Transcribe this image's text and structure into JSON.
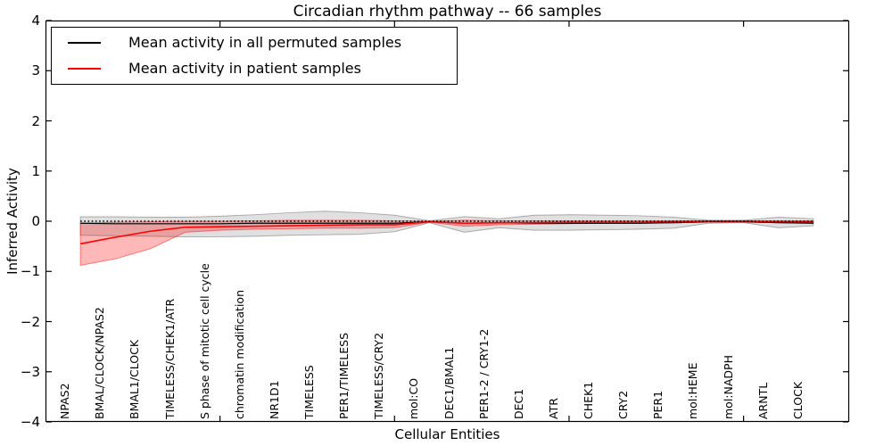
{
  "title": "Circadian rhythm pathway -- 66 samples",
  "legend": [
    {
      "label": "Mean activity in all permuted samples",
      "color": "#000000"
    },
    {
      "label": "Mean activity in patient samples",
      "color": "#ff0000"
    }
  ],
  "colors": {
    "permuted_line": "#000000",
    "patient_line": "#ff0000",
    "permuted_band": "#000000",
    "patient_band": "#ff0000",
    "axis": "#000000",
    "background": "#ffffff"
  },
  "chart_data": {
    "type": "line",
    "title": "Circadian rhythm pathway -- 66 samples",
    "xlabel": "Cellular Entities",
    "ylabel": "Inferred Activity",
    "ylim": [
      -4,
      4
    ],
    "xlim": [
      0,
      23
    ],
    "grid": false,
    "legend_position": "upper left",
    "yticks": [
      4,
      3,
      2,
      1,
      0,
      -1,
      -2,
      -3,
      -4
    ],
    "ytick_labels": [
      "4",
      "3",
      "2",
      "1",
      "0",
      "−1",
      "−2",
      "−3",
      "−4"
    ],
    "x_major_ticks": [
      5,
      10,
      15,
      20
    ],
    "categories": [
      "NPAS2",
      "BMAL/CLOCK/NPAS2",
      "BMAL1/CLOCK",
      "TIMELESS/CHEK1/ATR",
      "S phase of mitotic cell cycle",
      "chromatin modification",
      "NR1D1",
      "TIMELESS",
      "PER1/TIMELESS",
      "TIMELESS/CRY2",
      "mol:CO",
      "DEC1/BMAL1",
      "PER1-2 / CRY1-2",
      "DEC1",
      "ATR",
      "CHEK1",
      "CRY2",
      "PER1",
      "mol:HEME",
      "mol:NADPH",
      "ARNTL",
      "CLOCK"
    ],
    "series": [
      {
        "name": "Mean activity in all permuted samples",
        "color": "#000000",
        "style": "solid",
        "width": 1.2,
        "values": [
          -0.04,
          -0.05,
          -0.05,
          -0.05,
          -0.05,
          -0.04,
          -0.04,
          -0.04,
          -0.04,
          -0.04,
          -0.01,
          -0.04,
          -0.03,
          -0.04,
          -0.04,
          -0.04,
          -0.04,
          -0.03,
          -0.01,
          -0.01,
          -0.03,
          -0.04
        ]
      },
      {
        "name": "Mean activity in patient samples",
        "color": "#ff0000",
        "style": "solid",
        "width": 1.6,
        "values": [
          -0.45,
          -0.32,
          -0.2,
          -0.12,
          -0.11,
          -0.1,
          -0.09,
          -0.08,
          -0.07,
          -0.07,
          -0.01,
          -0.04,
          -0.03,
          -0.03,
          -0.02,
          -0.02,
          -0.02,
          -0.01,
          0.0,
          0.0,
          -0.01,
          -0.01
        ]
      },
      {
        "name": "zero-reference",
        "color": "#000000",
        "style": "dotted",
        "width": 1.6,
        "values": [
          0,
          0,
          0,
          0,
          0,
          0,
          0,
          0,
          0,
          0,
          0,
          0,
          0,
          0,
          0,
          0,
          0,
          0,
          0,
          0,
          0,
          0
        ]
      }
    ],
    "bands": [
      {
        "name": "permuted-samples-std-band",
        "color": "#000000",
        "opacity": 0.12,
        "upper": [
          0.09,
          0.09,
          0.08,
          0.08,
          0.1,
          0.13,
          0.17,
          0.2,
          0.17,
          0.12,
          0.01,
          0.09,
          0.05,
          0.12,
          0.13,
          0.12,
          0.11,
          0.08,
          0.02,
          0.02,
          0.08,
          0.05
        ],
        "lower": [
          -0.28,
          -0.29,
          -0.3,
          -0.31,
          -0.31,
          -0.3,
          -0.28,
          -0.27,
          -0.26,
          -0.21,
          -0.03,
          -0.22,
          -0.13,
          -0.18,
          -0.18,
          -0.17,
          -0.16,
          -0.14,
          -0.04,
          -0.03,
          -0.13,
          -0.09
        ]
      },
      {
        "name": "patient-samples-std-band",
        "color": "#ff0000",
        "opacity": 0.28,
        "upper": [
          -0.04,
          -0.02,
          -0.01,
          0.0,
          0.0,
          0.01,
          0.02,
          0.02,
          0.02,
          0.01,
          0.0,
          0.02,
          0.01,
          0.01,
          0.01,
          0.01,
          0.01,
          0.01,
          0.01,
          0.01,
          0.01,
          0.01
        ],
        "lower": [
          -0.88,
          -0.75,
          -0.55,
          -0.22,
          -0.18,
          -0.16,
          -0.15,
          -0.14,
          -0.14,
          -0.13,
          -0.02,
          -0.1,
          -0.07,
          -0.06,
          -0.05,
          -0.04,
          -0.04,
          -0.03,
          -0.02,
          -0.02,
          -0.03,
          -0.03
        ]
      }
    ]
  }
}
